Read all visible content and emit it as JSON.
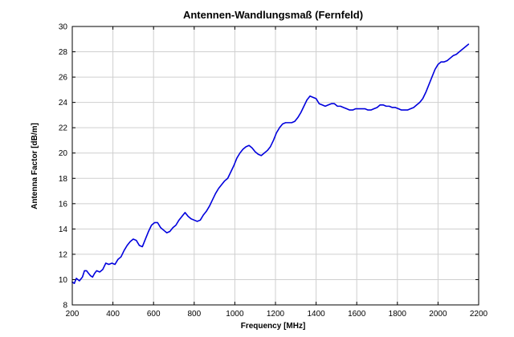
{
  "chart_data": {
    "type": "line",
    "title": "Antennen-Wandlungsmaß (Fernfeld)",
    "xlabel": "Frequency [MHz]",
    "ylabel": "Antenna Factor [dB/m]",
    "xlim": [
      200,
      2200
    ],
    "ylim": [
      8,
      30
    ],
    "xticks": [
      200,
      400,
      600,
      800,
      1000,
      1200,
      1400,
      1600,
      1800,
      2000,
      2200
    ],
    "yticks": [
      8,
      10,
      12,
      14,
      16,
      18,
      20,
      22,
      24,
      26,
      28,
      30
    ],
    "grid": true,
    "legend": "none",
    "series": [
      {
        "color": "#0000dd",
        "x": [
          200,
          210,
          220,
          235,
          250,
          260,
          270,
          280,
          290,
          300,
          310,
          320,
          335,
          350,
          365,
          380,
          395,
          410,
          425,
          440,
          455,
          470,
          485,
          500,
          515,
          530,
          545,
          560,
          575,
          590,
          605,
          620,
          635,
          650,
          665,
          680,
          695,
          710,
          725,
          740,
          755,
          770,
          785,
          800,
          815,
          830,
          845,
          860,
          875,
          890,
          905,
          920,
          935,
          950,
          965,
          980,
          995,
          1010,
          1025,
          1040,
          1055,
          1070,
          1085,
          1100,
          1115,
          1130,
          1145,
          1160,
          1175,
          1190,
          1205,
          1220,
          1235,
          1250,
          1265,
          1280,
          1295,
          1310,
          1325,
          1340,
          1355,
          1370,
          1385,
          1400,
          1415,
          1430,
          1445,
          1460,
          1475,
          1490,
          1505,
          1520,
          1535,
          1550,
          1565,
          1580,
          1595,
          1610,
          1625,
          1640,
          1655,
          1670,
          1685,
          1700,
          1715,
          1730,
          1745,
          1760,
          1775,
          1790,
          1805,
          1820,
          1835,
          1850,
          1865,
          1880,
          1895,
          1910,
          1925,
          1940,
          1955,
          1970,
          1985,
          2000,
          2015,
          2030,
          2045,
          2060,
          2075,
          2090,
          2105,
          2120,
          2135,
          2150
        ],
        "y": [
          9.8,
          9.7,
          10.1,
          9.9,
          10.2,
          10.7,
          10.7,
          10.5,
          10.3,
          10.2,
          10.5,
          10.7,
          10.6,
          10.8,
          11.3,
          11.2,
          11.3,
          11.2,
          11.6,
          11.8,
          12.3,
          12.7,
          13.0,
          13.2,
          13.1,
          12.7,
          12.6,
          13.2,
          13.8,
          14.3,
          14.5,
          14.5,
          14.1,
          13.9,
          13.7,
          13.8,
          14.1,
          14.3,
          14.7,
          15.0,
          15.3,
          15.0,
          14.8,
          14.7,
          14.6,
          14.7,
          15.1,
          15.4,
          15.8,
          16.3,
          16.8,
          17.2,
          17.5,
          17.8,
          18.0,
          18.5,
          19.0,
          19.6,
          20.0,
          20.3,
          20.5,
          20.6,
          20.4,
          20.1,
          19.9,
          19.8,
          20.0,
          20.2,
          20.5,
          21.0,
          21.6,
          22.0,
          22.3,
          22.4,
          22.4,
          22.4,
          22.5,
          22.8,
          23.2,
          23.7,
          24.2,
          24.5,
          24.4,
          24.3,
          23.9,
          23.8,
          23.7,
          23.8,
          23.9,
          23.9,
          23.7,
          23.7,
          23.6,
          23.5,
          23.4,
          23.4,
          23.5,
          23.5,
          23.5,
          23.5,
          23.4,
          23.4,
          23.5,
          23.6,
          23.8,
          23.8,
          23.7,
          23.7,
          23.6,
          23.6,
          23.5,
          23.4,
          23.4,
          23.4,
          23.5,
          23.6,
          23.8,
          24.0,
          24.3,
          24.8,
          25.4,
          26.0,
          26.6,
          27.0,
          27.2,
          27.2,
          27.3,
          27.5,
          27.7,
          27.8,
          28.0,
          28.2,
          28.4,
          28.6
        ]
      }
    ]
  }
}
